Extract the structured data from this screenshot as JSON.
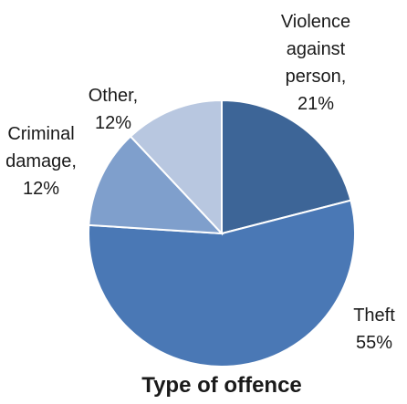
{
  "chart_data": {
    "type": "pie",
    "title": "Type of offence",
    "slices": [
      {
        "name": "Violence against person",
        "value": 21,
        "label_lines": [
          "Violence",
          "against",
          "person,",
          "21%"
        ],
        "color": "#3d6597"
      },
      {
        "name": "Theft",
        "value": 55,
        "label_lines": [
          "Theft",
          "55%"
        ],
        "color": "#4a78b5"
      },
      {
        "name": "Criminal damage",
        "value": 12,
        "label_lines": [
          "Criminal",
          "damage,",
          "12%"
        ],
        "color": "#7f9fcc"
      },
      {
        "name": "Other",
        "value": 12,
        "label_lines": [
          "Other,",
          "12%"
        ],
        "color": "#b8c7e0"
      }
    ]
  }
}
